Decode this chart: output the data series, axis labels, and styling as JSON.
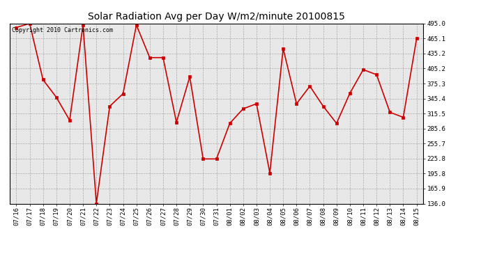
{
  "title": "Solar Radiation Avg per Day W/m2/minute 20100815",
  "copyright": "Copyright 2010 Cartronics.com",
  "labels": [
    "07/16",
    "07/17",
    "07/18",
    "07/19",
    "07/20",
    "07/21",
    "07/22",
    "07/23",
    "07/24",
    "07/25",
    "07/26",
    "07/27",
    "07/28",
    "07/29",
    "07/30",
    "07/31",
    "08/01",
    "08/02",
    "08/03",
    "08/04",
    "08/05",
    "08/06",
    "08/07",
    "08/08",
    "08/09",
    "08/10",
    "08/11",
    "08/12",
    "08/13",
    "08/14",
    "08/15"
  ],
  "values": [
    487.0,
    495.0,
    383.0,
    348.0,
    302.0,
    492.0,
    136.0,
    330.0,
    355.0,
    492.0,
    427.0,
    427.0,
    298.0,
    389.0,
    225.0,
    225.0,
    296.0,
    325.0,
    335.0,
    197.0,
    445.0,
    335.0,
    370.0,
    330.0,
    296.0,
    356.0,
    403.0,
    393.0,
    318.0,
    308.0,
    465.0
  ],
  "line_color": "#cc0000",
  "marker": "s",
  "marker_size": 2.5,
  "bg_color": "#ffffff",
  "plot_bg_color": "#e8e8e8",
  "grid_color": "#999999",
  "ylim": [
    136.0,
    495.0
  ],
  "yticks": [
    136.0,
    165.9,
    195.8,
    225.8,
    255.7,
    285.6,
    315.5,
    345.4,
    375.3,
    405.2,
    435.2,
    465.1,
    495.0
  ],
  "title_fontsize": 10,
  "tick_fontsize": 6.5,
  "copyright_fontsize": 6
}
